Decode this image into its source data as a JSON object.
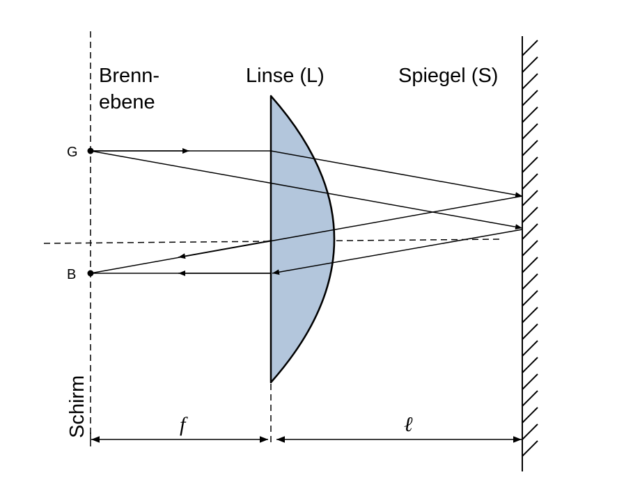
{
  "labels": {
    "focal_plane_line1": "Brenn-",
    "focal_plane_line2": "ebene",
    "lens": "Linse (L)",
    "mirror": "Spiegel (S)",
    "screen": "Schirm",
    "point_g": "G",
    "point_b": "B",
    "dim_f": "f",
    "dim_l": "ℓ"
  },
  "colors": {
    "lens_fill": "#b3c6dc",
    "stroke": "#000000"
  }
}
